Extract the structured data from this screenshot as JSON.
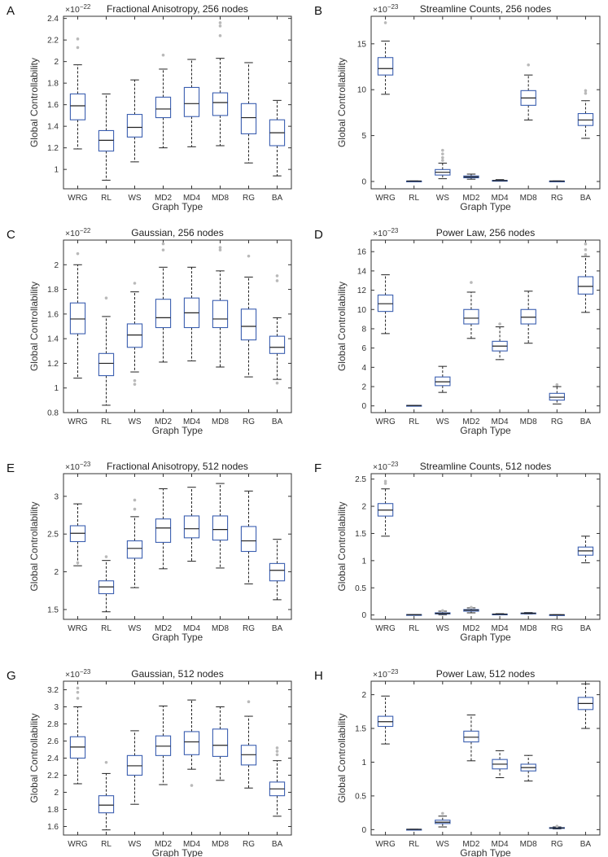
{
  "chart_data": [
    {
      "id": "A",
      "letter": "A",
      "type": "box",
      "title": "Fractional Anisotropy, 256 nodes",
      "xlabel": "Graph Type",
      "ylabel": "Global Controllability",
      "exponent_base": "×10",
      "exponent_power": "−22",
      "ylim": [
        0.82,
        2.42
      ],
      "yticks": [
        1,
        1.2,
        1.4,
        1.6,
        1.8,
        2,
        2.2,
        2.4
      ],
      "ytick_labels": [
        "1",
        "1.2",
        "1.4",
        "1.6",
        "1.8",
        "2",
        "2.2",
        "2.4"
      ],
      "categories": [
        "WRG",
        "RL",
        "WS",
        "MD2",
        "MD4",
        "MD8",
        "RG",
        "BA"
      ],
      "boxes": [
        {
          "whislo": 1.19,
          "q1": 1.46,
          "med": 1.59,
          "q3": 1.7,
          "whishi": 1.97,
          "fliers": [
            2.13,
            2.21
          ]
        },
        {
          "whislo": 0.9,
          "q1": 1.17,
          "med": 1.27,
          "q3": 1.36,
          "whishi": 1.7,
          "fliers": []
        },
        {
          "whislo": 1.07,
          "q1": 1.3,
          "med": 1.39,
          "q3": 1.51,
          "whishi": 1.83,
          "fliers": []
        },
        {
          "whislo": 1.2,
          "q1": 1.48,
          "med": 1.56,
          "q3": 1.67,
          "whishi": 1.93,
          "fliers": [
            2.06
          ]
        },
        {
          "whislo": 1.21,
          "q1": 1.49,
          "med": 1.61,
          "q3": 1.76,
          "whishi": 2.02,
          "fliers": []
        },
        {
          "whislo": 1.22,
          "q1": 1.5,
          "med": 1.62,
          "q3": 1.71,
          "whishi": 2.03,
          "fliers": [
            2.24,
            2.33,
            2.36
          ]
        },
        {
          "whislo": 1.06,
          "q1": 1.33,
          "med": 1.48,
          "q3": 1.61,
          "whishi": 1.99,
          "fliers": []
        },
        {
          "whislo": 0.94,
          "q1": 1.22,
          "med": 1.34,
          "q3": 1.46,
          "whishi": 1.64,
          "fliers": []
        }
      ]
    },
    {
      "id": "B",
      "letter": "B",
      "type": "box",
      "title": "Streamline Counts, 256 nodes",
      "xlabel": "Graph Type",
      "ylabel": "Global Controllability",
      "exponent_base": "×10",
      "exponent_power": "−23",
      "ylim": [
        -0.8,
        18.0
      ],
      "yticks": [
        0,
        5,
        10,
        15
      ],
      "ytick_labels": [
        "0",
        "5",
        "10",
        "15"
      ],
      "categories": [
        "WRG",
        "RL",
        "WS",
        "MD2",
        "MD4",
        "MD8",
        "RG",
        "BA"
      ],
      "boxes": [
        {
          "whislo": 9.5,
          "q1": 11.6,
          "med": 12.3,
          "q3": 13.5,
          "whishi": 15.3,
          "fliers": [
            17.3
          ]
        },
        {
          "whislo": 0.02,
          "q1": 0.03,
          "med": 0.04,
          "q3": 0.05,
          "whishi": 0.06,
          "fliers": []
        },
        {
          "whislo": 0.3,
          "q1": 0.7,
          "med": 1.0,
          "q3": 1.3,
          "whishi": 2.0,
          "fliers": [
            2.3,
            2.6,
            3.0,
            3.4
          ]
        },
        {
          "whislo": 0.25,
          "q1": 0.4,
          "med": 0.5,
          "q3": 0.6,
          "whishi": 0.8,
          "fliers": []
        },
        {
          "whislo": 0.05,
          "q1": 0.08,
          "med": 0.1,
          "q3": 0.12,
          "whishi": 0.2,
          "fliers": []
        },
        {
          "whislo": 6.7,
          "q1": 8.3,
          "med": 9.1,
          "q3": 9.9,
          "whishi": 11.6,
          "fliers": [
            12.7
          ]
        },
        {
          "whislo": 0.02,
          "q1": 0.03,
          "med": 0.04,
          "q3": 0.05,
          "whishi": 0.06,
          "fliers": []
        },
        {
          "whislo": 4.7,
          "q1": 6.1,
          "med": 6.7,
          "q3": 7.4,
          "whishi": 8.8,
          "fliers": [
            9.6,
            9.9
          ]
        }
      ]
    },
    {
      "id": "C",
      "letter": "C",
      "type": "box",
      "title": "Gaussian, 256 nodes",
      "xlabel": "Graph Type",
      "ylabel": "Global Controllability",
      "exponent_base": "×10",
      "exponent_power": "−22",
      "ylim": [
        0.8,
        2.2
      ],
      "yticks": [
        0.8,
        1,
        1.2,
        1.4,
        1.6,
        1.8,
        2
      ],
      "ytick_labels": [
        "0.8",
        "1",
        "1.2",
        "1.4",
        "1.6",
        "1.8",
        "2"
      ],
      "categories": [
        "WRG",
        "RL",
        "WS",
        "MD2",
        "MD4",
        "MD8",
        "RG",
        "BA"
      ],
      "boxes": [
        {
          "whislo": 1.08,
          "q1": 1.44,
          "med": 1.56,
          "q3": 1.69,
          "whishi": 2.0,
          "fliers": [
            2.09
          ]
        },
        {
          "whislo": 0.86,
          "q1": 1.1,
          "med": 1.2,
          "q3": 1.28,
          "whishi": 1.58,
          "fliers": [
            1.73
          ]
        },
        {
          "whislo": 1.13,
          "q1": 1.33,
          "med": 1.43,
          "q3": 1.52,
          "whishi": 1.78,
          "fliers": [
            1.03,
            1.06,
            1.85
          ]
        },
        {
          "whislo": 1.21,
          "q1": 1.49,
          "med": 1.57,
          "q3": 1.72,
          "whishi": 1.98,
          "fliers": [
            2.12,
            2.17
          ]
        },
        {
          "whislo": 1.22,
          "q1": 1.49,
          "med": 1.61,
          "q3": 1.73,
          "whishi": 1.98,
          "fliers": []
        },
        {
          "whislo": 1.17,
          "q1": 1.49,
          "med": 1.56,
          "q3": 1.71,
          "whishi": 1.95,
          "fliers": [
            2.12,
            2.14
          ]
        },
        {
          "whislo": 1.09,
          "q1": 1.39,
          "med": 1.5,
          "q3": 1.64,
          "whishi": 1.9,
          "fliers": [
            2.07
          ]
        },
        {
          "whislo": 1.07,
          "q1": 1.28,
          "med": 1.33,
          "q3": 1.42,
          "whishi": 1.57,
          "fliers": [
            1.04,
            1.87,
            1.91
          ]
        }
      ]
    },
    {
      "id": "D",
      "letter": "D",
      "type": "box",
      "title": "Power Law, 256 nodes",
      "xlabel": "Graph Type",
      "ylabel": "Global Controllability",
      "exponent_base": "×10",
      "exponent_power": "−23",
      "ylim": [
        -0.7,
        17.2
      ],
      "yticks": [
        0,
        2,
        4,
        6,
        8,
        10,
        12,
        14,
        16
      ],
      "ytick_labels": [
        "0",
        "2",
        "4",
        "6",
        "8",
        "10",
        "12",
        "14",
        "16"
      ],
      "categories": [
        "WRG",
        "RL",
        "WS",
        "MD2",
        "MD4",
        "MD8",
        "RG",
        "BA"
      ],
      "boxes": [
        {
          "whislo": 7.5,
          "q1": 9.8,
          "med": 10.6,
          "q3": 11.5,
          "whishi": 13.6,
          "fliers": []
        },
        {
          "whislo": 0.02,
          "q1": 0.03,
          "med": 0.04,
          "q3": 0.05,
          "whishi": 0.06,
          "fliers": []
        },
        {
          "whislo": 1.4,
          "q1": 2.1,
          "med": 2.5,
          "q3": 3.0,
          "whishi": 4.1,
          "fliers": []
        },
        {
          "whislo": 7.0,
          "q1": 8.5,
          "med": 9.1,
          "q3": 10.0,
          "whishi": 11.8,
          "fliers": [
            12.8
          ]
        },
        {
          "whislo": 4.8,
          "q1": 5.7,
          "med": 6.2,
          "q3": 6.7,
          "whishi": 8.2,
          "fliers": [
            8.5
          ]
        },
        {
          "whislo": 6.5,
          "q1": 8.5,
          "med": 9.2,
          "q3": 10.0,
          "whishi": 11.9,
          "fliers": []
        },
        {
          "whislo": 0.2,
          "q1": 0.6,
          "med": 0.9,
          "q3": 1.3,
          "whishi": 2.0,
          "fliers": [
            2.2
          ]
        },
        {
          "whislo": 9.7,
          "q1": 11.6,
          "med": 12.4,
          "q3": 13.4,
          "whishi": 15.5,
          "fliers": [
            15.7,
            16.2,
            16.8
          ]
        }
      ]
    },
    {
      "id": "E",
      "letter": "E",
      "type": "box",
      "title": "Fractional Anisotropy, 512 nodes",
      "xlabel": "Graph Type",
      "ylabel": "Global Controllability",
      "exponent_base": "×10",
      "exponent_power": "−23",
      "ylim": [
        1.37,
        3.3
      ],
      "yticks": [
        1.5,
        2,
        2.5,
        3
      ],
      "ytick_labels": [
        "1.5",
        "2",
        "2.5",
        "3"
      ],
      "categories": [
        "WRG",
        "RL",
        "WS",
        "MD2",
        "MD4",
        "MD8",
        "RG",
        "BA"
      ],
      "boxes": [
        {
          "whislo": 2.08,
          "q1": 2.4,
          "med": 2.51,
          "q3": 2.61,
          "whishi": 2.9,
          "fliers": [
            2.12
          ]
        },
        {
          "whislo": 1.47,
          "q1": 1.71,
          "med": 1.8,
          "q3": 1.88,
          "whishi": 2.15,
          "fliers": [
            2.2
          ]
        },
        {
          "whislo": 1.79,
          "q1": 2.18,
          "med": 2.31,
          "q3": 2.41,
          "whishi": 2.73,
          "fliers": [
            2.83,
            2.95
          ]
        },
        {
          "whislo": 2.04,
          "q1": 2.39,
          "med": 2.58,
          "q3": 2.7,
          "whishi": 3.1,
          "fliers": []
        },
        {
          "whislo": 2.14,
          "q1": 2.45,
          "med": 2.57,
          "q3": 2.74,
          "whishi": 3.12,
          "fliers": []
        },
        {
          "whislo": 2.05,
          "q1": 2.42,
          "med": 2.56,
          "q3": 2.74,
          "whishi": 3.17,
          "fliers": []
        },
        {
          "whislo": 1.84,
          "q1": 2.27,
          "med": 2.41,
          "q3": 2.6,
          "whishi": 3.07,
          "fliers": []
        },
        {
          "whislo": 1.63,
          "q1": 1.88,
          "med": 2.02,
          "q3": 2.11,
          "whishi": 2.43,
          "fliers": []
        }
      ]
    },
    {
      "id": "F",
      "letter": "F",
      "type": "box",
      "title": "Streamline Counts, 512 nodes",
      "xlabel": "Graph Type",
      "ylabel": "Global Controllability",
      "exponent_base": "×10",
      "exponent_power": "−23",
      "ylim": [
        -0.08,
        2.6
      ],
      "yticks": [
        0,
        0.5,
        1,
        1.5,
        2,
        2.5
      ],
      "ytick_labels": [
        "0",
        "0.5",
        "1",
        "1.5",
        "2",
        "2.5"
      ],
      "categories": [
        "WRG",
        "RL",
        "WS",
        "MD2",
        "MD4",
        "MD8",
        "RG",
        "BA"
      ],
      "boxes": [
        {
          "whislo": 1.45,
          "q1": 1.82,
          "med": 1.93,
          "q3": 2.05,
          "whishi": 2.32,
          "fliers": [
            2.42,
            2.46
          ]
        },
        {
          "whislo": 0.003,
          "q1": 0.005,
          "med": 0.006,
          "q3": 0.008,
          "whishi": 0.01,
          "fliers": []
        },
        {
          "whislo": 0.005,
          "q1": 0.02,
          "med": 0.03,
          "q3": 0.04,
          "whishi": 0.07,
          "fliers": [
            0.08
          ]
        },
        {
          "whislo": 0.04,
          "q1": 0.07,
          "med": 0.09,
          "q3": 0.1,
          "whishi": 0.13,
          "fliers": [
            0.14
          ]
        },
        {
          "whislo": 0.008,
          "q1": 0.012,
          "med": 0.015,
          "q3": 0.018,
          "whishi": 0.025,
          "fliers": []
        },
        {
          "whislo": 0.02,
          "q1": 0.028,
          "med": 0.032,
          "q3": 0.036,
          "whishi": 0.045,
          "fliers": []
        },
        {
          "whislo": 0.002,
          "q1": 0.003,
          "med": 0.004,
          "q3": 0.005,
          "whishi": 0.006,
          "fliers": []
        },
        {
          "whislo": 0.96,
          "q1": 1.1,
          "med": 1.18,
          "q3": 1.25,
          "whishi": 1.45,
          "fliers": []
        }
      ]
    },
    {
      "id": "G",
      "letter": "G",
      "type": "box",
      "title": "Gaussian, 512 nodes",
      "xlabel": "Graph Type",
      "ylabel": "Global Controllability",
      "exponent_base": "×10",
      "exponent_power": "−23",
      "ylim": [
        1.5,
        3.3
      ],
      "yticks": [
        1.6,
        1.8,
        2,
        2.2,
        2.4,
        2.6,
        2.8,
        3,
        3.2
      ],
      "ytick_labels": [
        "1.6",
        "1.8",
        "2",
        "2.2",
        "2.4",
        "2.6",
        "2.8",
        "3",
        "3.2"
      ],
      "categories": [
        "WRG",
        "RL",
        "WS",
        "MD2",
        "MD4",
        "MD8",
        "RG",
        "BA"
      ],
      "boxes": [
        {
          "whislo": 2.1,
          "q1": 2.4,
          "med": 2.53,
          "q3": 2.65,
          "whishi": 3.0,
          "fliers": [
            3.1,
            3.17,
            3.22
          ]
        },
        {
          "whislo": 1.56,
          "q1": 1.76,
          "med": 1.85,
          "q3": 1.96,
          "whishi": 2.22,
          "fliers": [
            2.35
          ]
        },
        {
          "whislo": 1.86,
          "q1": 2.2,
          "med": 2.31,
          "q3": 2.43,
          "whishi": 2.72,
          "fliers": []
        },
        {
          "whislo": 2.09,
          "q1": 2.43,
          "med": 2.54,
          "q3": 2.66,
          "whishi": 3.01,
          "fliers": []
        },
        {
          "whislo": 2.27,
          "q1": 2.44,
          "med": 2.59,
          "q3": 2.71,
          "whishi": 3.08,
          "fliers": [
            2.08
          ]
        },
        {
          "whislo": 2.14,
          "q1": 2.42,
          "med": 2.55,
          "q3": 2.74,
          "whishi": 3.0,
          "fliers": []
        },
        {
          "whislo": 2.05,
          "q1": 2.32,
          "med": 2.44,
          "q3": 2.55,
          "whishi": 2.89,
          "fliers": [
            3.06
          ]
        },
        {
          "whislo": 1.72,
          "q1": 1.96,
          "med": 2.04,
          "q3": 2.12,
          "whishi": 2.37,
          "fliers": [
            2.44,
            2.48,
            2.52
          ]
        }
      ]
    },
    {
      "id": "H",
      "letter": "H",
      "type": "box",
      "title": "Power Law, 512 nodes",
      "xlabel": "Graph Type",
      "ylabel": "Global Controllability",
      "exponent_base": "×10",
      "exponent_power": "−23",
      "ylim": [
        -0.08,
        2.2
      ],
      "yticks": [
        0,
        0.5,
        1,
        1.5,
        2
      ],
      "ytick_labels": [
        "0",
        "0.5",
        "1",
        "1.5",
        "2"
      ],
      "categories": [
        "WRG",
        "RL",
        "WS",
        "MD2",
        "MD4",
        "MD8",
        "RG",
        "BA"
      ],
      "boxes": [
        {
          "whislo": 1.27,
          "q1": 1.53,
          "med": 1.6,
          "q3": 1.68,
          "whishi": 1.98,
          "fliers": []
        },
        {
          "whislo": 0.002,
          "q1": 0.003,
          "med": 0.004,
          "q3": 0.005,
          "whishi": 0.006,
          "fliers": []
        },
        {
          "whislo": 0.04,
          "q1": 0.09,
          "med": 0.11,
          "q3": 0.14,
          "whishi": 0.2,
          "fliers": [
            0.24
          ]
        },
        {
          "whislo": 1.02,
          "q1": 1.3,
          "med": 1.37,
          "q3": 1.46,
          "whishi": 1.7,
          "fliers": []
        },
        {
          "whislo": 0.77,
          "q1": 0.9,
          "med": 0.97,
          "q3": 1.04,
          "whishi": 1.17,
          "fliers": []
        },
        {
          "whislo": 0.72,
          "q1": 0.87,
          "med": 0.92,
          "q3": 0.97,
          "whishi": 1.1,
          "fliers": []
        },
        {
          "whislo": 0.01,
          "q1": 0.02,
          "med": 0.025,
          "q3": 0.03,
          "whishi": 0.04,
          "fliers": [
            0.05
          ]
        },
        {
          "whislo": 1.5,
          "q1": 1.78,
          "med": 1.87,
          "q3": 1.96,
          "whishi": 2.16,
          "fliers": []
        }
      ]
    }
  ],
  "colors": {
    "box": "#3b5fb0",
    "median": "#222222",
    "whisker": "#222222",
    "flier": "#b9b9b9",
    "axis": "#333333"
  }
}
